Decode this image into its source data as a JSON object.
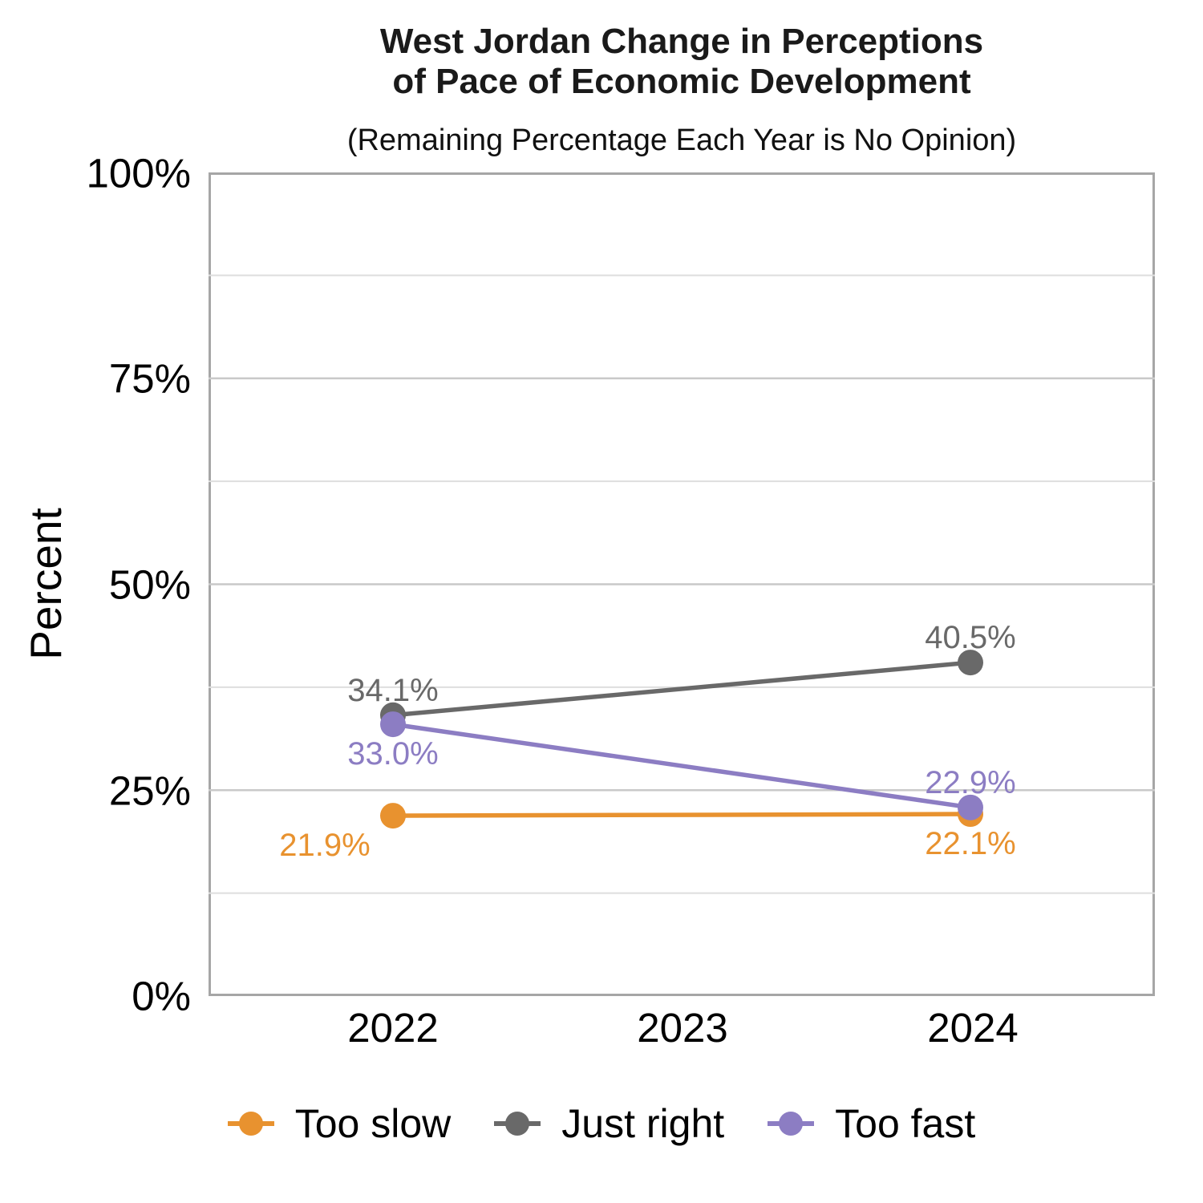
{
  "title": {
    "line1": "West Jordan Change in Perceptions",
    "line2": "of Pace of Economic Development"
  },
  "subtitle": "(Remaining Percentage Each Year is No Opinion)",
  "y_axis": {
    "title": "Percent",
    "ticks": [
      "100%",
      "75%",
      "50%",
      "25%",
      "0%"
    ]
  },
  "x_axis": {
    "ticks": [
      "2022",
      "2023",
      "2024"
    ]
  },
  "legend": {
    "items": [
      {
        "label": "Too slow"
      },
      {
        "label": "Just right"
      },
      {
        "label": "Too fast"
      }
    ]
  },
  "colors": {
    "orange": "#E8922F",
    "gray": "#696969",
    "purple": "#8C7DC3",
    "grid_major": "#C9C9C9",
    "grid_minor": "#DEDEDE",
    "panel_border": "#A6A6A6"
  },
  "chart_data": {
    "type": "line",
    "title": "West Jordan Change in Perceptions of Pace of Economic Development",
    "subtitle": "(Remaining Percentage Each Year is No Opinion)",
    "xlabel": "",
    "ylabel": "Percent",
    "ylim": [
      0,
      100
    ],
    "categories": [
      "2022",
      "2023",
      "2024"
    ],
    "x_values": [
      2022,
      2023,
      2024
    ],
    "y_major_ticks": [
      0,
      25,
      50,
      75,
      100
    ],
    "y_major_gridlines": [
      25,
      50,
      75
    ],
    "y_minor_gridlines": [
      12.5,
      37.5,
      62.5,
      87.5
    ],
    "grid": true,
    "legend_position": "bottom",
    "series": [
      {
        "name": "Too slow",
        "color": "#E8922F",
        "points": [
          {
            "x": 2022,
            "y": 21.9,
            "label": "21.9%",
            "label_pos": "below-left"
          },
          {
            "x": 2024,
            "y": 22.1,
            "label": "22.1%",
            "label_pos": "below"
          }
        ]
      },
      {
        "name": "Just right",
        "color": "#696969",
        "points": [
          {
            "x": 2022,
            "y": 34.1,
            "label": "34.1%",
            "label_pos": "above"
          },
          {
            "x": 2024,
            "y": 40.5,
            "label": "40.5%",
            "label_pos": "above"
          }
        ]
      },
      {
        "name": "Too fast",
        "color": "#8C7DC3",
        "points": [
          {
            "x": 2022,
            "y": 33.0,
            "label": "33.0%",
            "label_pos": "below"
          },
          {
            "x": 2024,
            "y": 22.9,
            "label": "22.9%",
            "label_pos": "above"
          }
        ]
      }
    ]
  }
}
